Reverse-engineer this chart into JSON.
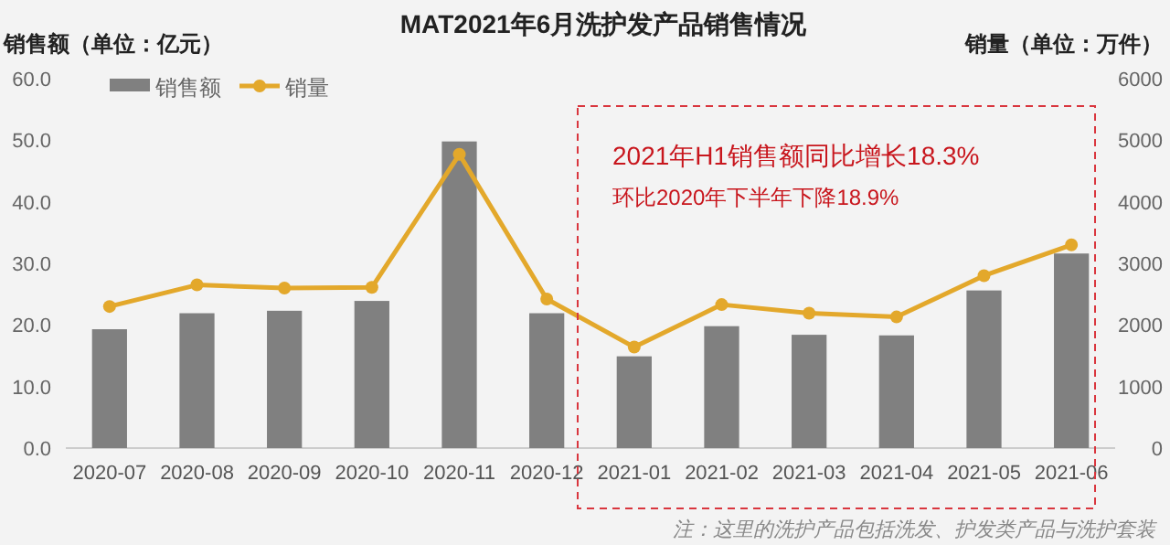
{
  "chart_data": {
    "type": "bar",
    "title": "MAT2021年6月洗护发产品销售情况",
    "ylabel": "销售额（单位：亿元）",
    "y2label": "销量（单位：万件）",
    "categories": [
      "2020-07",
      "2020-08",
      "2020-09",
      "2020-10",
      "2020-11",
      "2020-12",
      "2021-01",
      "2021-02",
      "2021-03",
      "2021-04",
      "2021-05",
      "2021-06"
    ],
    "series": [
      {
        "name": "销售额",
        "color": "#808080",
        "values": [
          19.3,
          21.9,
          22.3,
          23.9,
          49.8,
          21.9,
          14.9,
          19.8,
          18.4,
          18.3,
          25.6,
          31.6
        ]
      },
      {
        "name": "销量",
        "type": "line",
        "axis": "y2",
        "color": "#e3a82b",
        "marker": "circle",
        "values": [
          2300,
          2650,
          2600,
          2610,
          4770,
          2420,
          1640,
          2330,
          2190,
          2130,
          2800,
          3300
        ]
      }
    ],
    "ylim": [
      0,
      60
    ],
    "yticks": [
      {
        "value": 0,
        "label": "0.0"
      },
      {
        "value": 10,
        "label": "10.0"
      },
      {
        "value": 20,
        "label": "20.0"
      },
      {
        "value": 30,
        "label": "30.0"
      },
      {
        "value": 40,
        "label": "40.0"
      },
      {
        "value": 50,
        "label": "50.0"
      },
      {
        "value": 60,
        "label": "60.0"
      }
    ],
    "y2lim": [
      0,
      6000
    ],
    "y2ticks": [
      0,
      1000,
      2000,
      3000,
      4000,
      5000,
      6000
    ],
    "grid": false,
    "legend": "top left",
    "annotations": [
      "2021年H1销售额同比增长18.3%",
      "环比2020年下半年下降18.9%",
      "注：这里的洗护产品包括洗发、护发类产品与洗护套装"
    ]
  }
}
